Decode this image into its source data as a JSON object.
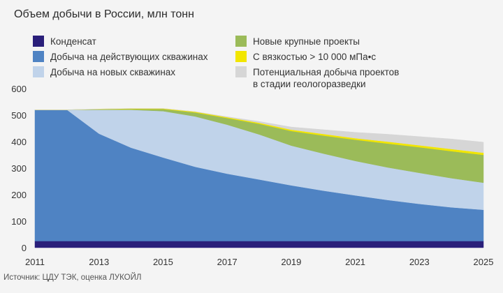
{
  "chart_data": {
    "type": "area",
    "title": "Объем добычи в России, млн тонн",
    "ylim": [
      0,
      600
    ],
    "xlim": [
      2011,
      2025
    ],
    "yticks": [
      0,
      100,
      200,
      300,
      400,
      500,
      600
    ],
    "xticks": [
      2011,
      2013,
      2015,
      2017,
      2019,
      2021,
      2023,
      2025
    ],
    "grid": false,
    "legend_position": "top",
    "x": [
      2011,
      2012,
      2013,
      2014,
      2015,
      2016,
      2017,
      2018,
      2019,
      2020,
      2021,
      2022,
      2023,
      2024,
      2025
    ],
    "series": [
      {
        "key": "condensate",
        "name": "Конденсат",
        "color": "#2a1f7a",
        "values": [
          25,
          25,
          25,
          25,
          25,
          25,
          25,
          25,
          25,
          25,
          25,
          25,
          25,
          25,
          25
        ]
      },
      {
        "key": "existing",
        "name": "Добыча на действующих скважинах",
        "color": "#4f83c3",
        "values": [
          495,
          495,
          405,
          352,
          315,
          280,
          254,
          232,
          210,
          190,
          172,
          155,
          140,
          127,
          118
        ]
      },
      {
        "key": "new_wells",
        "name": "Добыча на новых скважинах",
        "color": "#c0d3ea",
        "values": [
          0,
          0,
          90,
          143,
          175,
          190,
          185,
          170,
          150,
          140,
          130,
          123,
          117,
          110,
          102
        ]
      },
      {
        "key": "major_projects",
        "name": "Новые крупные проекты",
        "color": "#9bbb59",
        "values": [
          0,
          0,
          2,
          3,
          8,
          15,
          25,
          40,
          55,
          68,
          80,
          90,
          97,
          102,
          105
        ]
      },
      {
        "key": "viscosity",
        "name": "С вязкостью > 10 000 мПа•с",
        "color": "#f2e600",
        "values": [
          0,
          0,
          1,
          2,
          2,
          3,
          3,
          4,
          5,
          6,
          6,
          7,
          7,
          8,
          8
        ]
      },
      {
        "key": "exploration",
        "name": "Потенциальная добыча проектов\nв стадии геологоразведки",
        "color": "#d6d6d6",
        "values": [
          0,
          0,
          0,
          0,
          0,
          0,
          2,
          5,
          10,
          16,
          22,
          28,
          33,
          38,
          40
        ]
      }
    ]
  },
  "source": "Источник: ЦДУ ТЭК, оценка ЛУКОЙЛ"
}
